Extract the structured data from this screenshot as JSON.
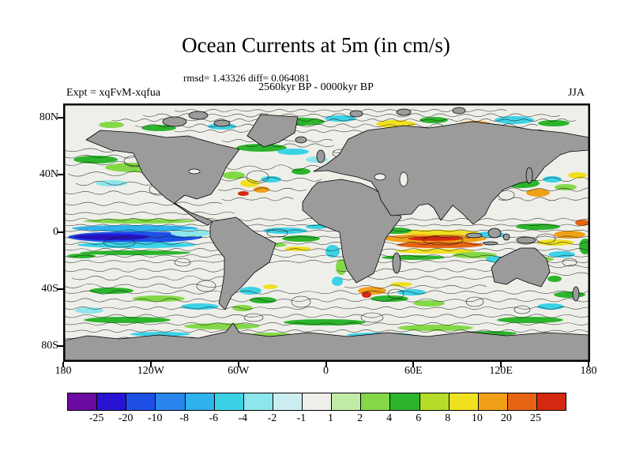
{
  "title": "Ocean Currents at 5m (in cm/s)",
  "header": {
    "stats_line": "rmsd= 1.43326 diff= 0.064081",
    "period_line": "2560kyr BP - 0000kyr BP",
    "experiment_label": "Expt = xqFvM-xqfua",
    "season_label": "JJA"
  },
  "axes": {
    "y_ticks": [
      "80N",
      "40N",
      "0",
      "40S",
      "80S"
    ],
    "x_ticks": [
      "180",
      "120W",
      "60W",
      "0",
      "60E",
      "120E",
      "180"
    ]
  },
  "colorbar": {
    "labels": [
      "-25",
      "-20",
      "-10",
      "-8",
      "-6",
      "-4",
      "-2",
      "-1",
      "1",
      "2",
      "4",
      "6",
      "8",
      "10",
      "20",
      "25"
    ],
    "colors": [
      "#6a0aa0",
      "#2814d2",
      "#1e50e6",
      "#2886ec",
      "#30b2ec",
      "#3cd2e6",
      "#8ce6ec",
      "#cceef0",
      "#efefea",
      "#c0eca6",
      "#84d848",
      "#2cb42c",
      "#b4dc28",
      "#f0e020",
      "#f0a018",
      "#e66414",
      "#d42810"
    ]
  },
  "map_colors": {
    "land": "#9b9b9b",
    "ocean": "#efefea",
    "coastline": "#000000"
  },
  "chart_data": {
    "type": "heatmap",
    "title": "Ocean Currents at 5m (in cm/s)",
    "subtitle": "2560kyr BP - 0000kyr BP",
    "season": "JJA",
    "experiment": "xqFvM-xqfua",
    "units": "cm/s",
    "rmsd": 1.43326,
    "diff": 0.064081,
    "xlabel": "",
    "ylabel": "",
    "x_range_deg_lon": [
      -180,
      180
    ],
    "y_range_deg_lat": [
      -90,
      90
    ],
    "x_tick_labels": [
      "180",
      "120W",
      "60W",
      "0",
      "60E",
      "120E",
      "180"
    ],
    "y_tick_labels": [
      "80N",
      "40N",
      "0",
      "40S",
      "80S"
    ],
    "levels": [
      -25,
      -20,
      -10,
      -8,
      -6,
      -4,
      -2,
      -1,
      1,
      2,
      4,
      6,
      8,
      10,
      20,
      25
    ],
    "palette": [
      "#6a0aa0",
      "#2814d2",
      "#1e50e6",
      "#2886ec",
      "#30b2ec",
      "#3cd2e6",
      "#8ce6ec",
      "#cceef0",
      "#efefea",
      "#c0eca6",
      "#84d848",
      "#2cb42c",
      "#b4dc28",
      "#f0e020",
      "#f0a018",
      "#e66414",
      "#d42810"
    ],
    "legend_position": "bottom",
    "grid": false,
    "notable_features": [
      "Strong negative (blue, -10 to -25 cm/s) zonal band along the equatorial Pacific west of South America",
      "Strong positive (orange-red, +10 to +25 cm/s) zonal band in the equatorial Indian Ocean",
      "Scattered +/-2 to 10 cm/s anomalies along western boundary currents, the Arctic margin and the Southern Ocean",
      "Near-zero (|diff| < 1 cm/s) over most of the subtropical ocean interior"
    ]
  }
}
